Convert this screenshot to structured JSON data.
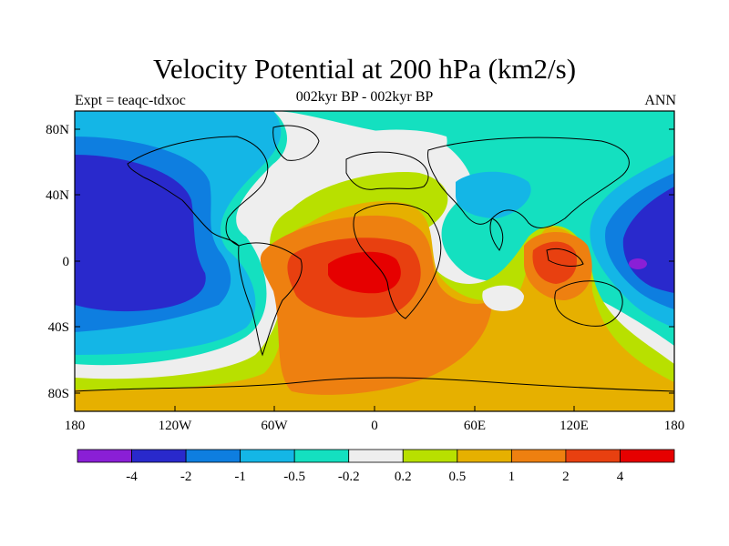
{
  "title": "Velocity Potential at 200 hPa (km2/s)",
  "subtitle_left": "Expt = teaqc-tdxoc",
  "subtitle_center": "002kyr BP - 002kyr BP",
  "subtitle_right": "ANN",
  "axes": {
    "y_ticks": [
      "80N",
      "40N",
      "0",
      "40S",
      "80S"
    ],
    "x_ticks": [
      "180",
      "120W",
      "60W",
      "0",
      "60E",
      "120E",
      "180"
    ]
  },
  "colorbar": {
    "colors": [
      "#8a1fd6",
      "#2929cc",
      "#0e7ee0",
      "#14b6e6",
      "#14e0c0",
      "#eeeeee",
      "#b8e000",
      "#e6b000",
      "#ee8010",
      "#e84010",
      "#e60000"
    ],
    "labels": [
      "-4",
      "-2",
      "-1",
      "-0.5",
      "-0.2",
      "0.2",
      "0.5",
      "1",
      "2",
      "4"
    ]
  },
  "palette": {
    "frame": "#000000",
    "coast": "#000000"
  }
}
